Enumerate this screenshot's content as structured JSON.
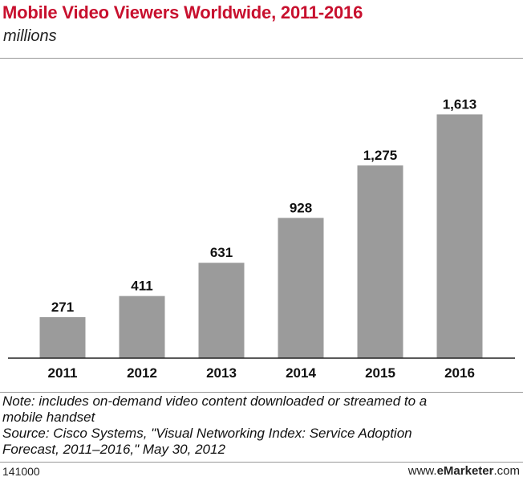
{
  "header": {
    "title": "Mobile Video Viewers Worldwide, 2011-2016",
    "subtitle": "millions"
  },
  "colors": {
    "title": "#c8102e",
    "bar": "#9b9b9b",
    "axis": "#222222"
  },
  "chart_data": {
    "type": "bar",
    "title": "Mobile Video Viewers Worldwide, 2011-2016",
    "subtitle": "millions",
    "categories": [
      "2011",
      "2012",
      "2013",
      "2014",
      "2015",
      "2016"
    ],
    "values": [
      271,
      411,
      631,
      928,
      1275,
      1613
    ],
    "value_labels": [
      "271",
      "411",
      "631",
      "928",
      "1,275",
      "1,613"
    ],
    "xlabel": "",
    "ylabel": "",
    "ylim": [
      0,
      1800
    ],
    "grid": false,
    "legend": "none"
  },
  "footer": {
    "note_line1": "Note: includes on-demand video content downloaded or streamed to a",
    "note_line2": "mobile handset",
    "source_line1": "Source: Cisco Systems, \"Visual Networking Index: Service Adoption",
    "source_line2": "Forecast, 2011–2016,\" May 30, 2012",
    "chart_id": "141000",
    "brand_prefix": "www.",
    "brand_bold": "eMarketer",
    "brand_suffix": ".com"
  }
}
